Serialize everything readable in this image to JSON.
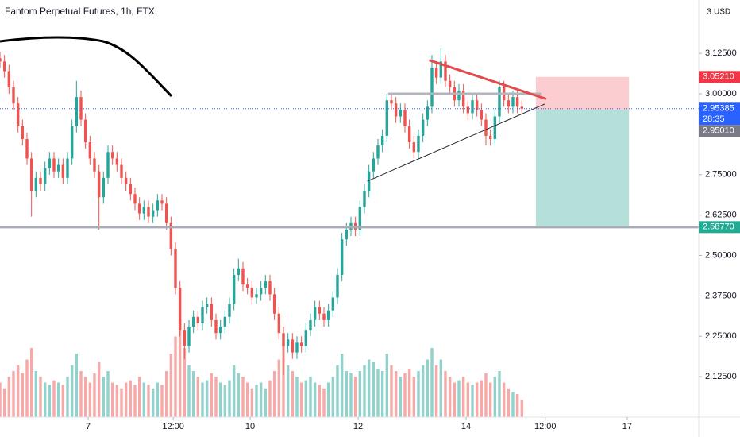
{
  "chart_data": {
    "type": "candlestick",
    "title": "Fantom Perpetual Futures, 1h, FTX",
    "scale_label": "3",
    "currency": "USD",
    "up_color": "#26a69a",
    "down_color": "#ef5350",
    "grid": false,
    "xlim": [
      0,
      155.3
    ],
    "xticks": [
      {
        "value": 19.6,
        "label": "7"
      },
      {
        "value": 38.5,
        "label": "12:00"
      },
      {
        "value": 55.6,
        "label": "10"
      },
      {
        "value": 79.6,
        "label": "12"
      },
      {
        "value": 103.6,
        "label": "14"
      },
      {
        "value": 121.2,
        "label": "12:00"
      },
      {
        "value": 139.4,
        "label": "17"
      }
    ],
    "ylim": [
      2.0,
      3.29
    ],
    "yticks": [
      {
        "value": 3.125,
        "label": "3.12500"
      },
      {
        "value": 3.0,
        "label": "3.00000"
      },
      {
        "value": 2.75,
        "label": "2.75000"
      },
      {
        "value": 2.625,
        "label": "2.62500"
      },
      {
        "value": 2.5,
        "label": "2.50000"
      },
      {
        "value": 2.375,
        "label": "2.37500"
      },
      {
        "value": 2.25,
        "label": "2.25000"
      },
      {
        "value": 2.125,
        "label": "2.12500"
      }
    ],
    "open": [
      3.11,
      3.1,
      3.07,
      3.02,
      2.97,
      2.9,
      2.86,
      2.8,
      2.7,
      2.74,
      2.72,
      2.77,
      2.8,
      2.76,
      2.78,
      2.74,
      2.8,
      2.9,
      2.99,
      2.92,
      2.85,
      2.8,
      2.76,
      2.68,
      2.74,
      2.82,
      2.8,
      2.78,
      2.74,
      2.72,
      2.69,
      2.66,
      2.63,
      2.65,
      2.62,
      2.64,
      2.67,
      2.66,
      2.6,
      2.52,
      2.4,
      2.27,
      2.22,
      2.28,
      2.31,
      2.29,
      2.34,
      2.35,
      2.3,
      2.26,
      2.28,
      2.31,
      2.35,
      2.44,
      2.46,
      2.41,
      2.4,
      2.37,
      2.38,
      2.4,
      2.42,
      2.38,
      2.32,
      2.26,
      2.22,
      2.24,
      2.2,
      2.23,
      2.22,
      2.27,
      2.3,
      2.34,
      2.32,
      2.3,
      2.33,
      2.37,
      2.44,
      2.55,
      2.58,
      2.6,
      2.58,
      2.65,
      2.7,
      2.76,
      2.8,
      2.84,
      2.87,
      2.98,
      2.97,
      2.93,
      2.95,
      2.9,
      2.85,
      2.82,
      2.87,
      2.92,
      2.96,
      3.08,
      3.05,
      3.1,
      3.04,
      3.02,
      2.98,
      3.01,
      2.96,
      2.94,
      2.98,
      2.95,
      2.92,
      2.87,
      2.86,
      2.93,
      3.02,
      2.98,
      2.96,
      2.99,
      2.96
    ],
    "high": [
      3.13,
      3.12,
      3.09,
      3.04,
      2.99,
      2.92,
      2.88,
      2.82,
      2.76,
      2.76,
      2.79,
      2.82,
      2.82,
      2.8,
      2.8,
      2.82,
      2.92,
      3.04,
      3.01,
      2.94,
      2.87,
      2.82,
      2.78,
      2.76,
      2.84,
      2.84,
      2.82,
      2.8,
      2.76,
      2.74,
      2.71,
      2.68,
      2.67,
      2.67,
      2.66,
      2.69,
      2.69,
      2.68,
      2.62,
      2.54,
      2.42,
      2.29,
      2.3,
      2.33,
      2.33,
      2.36,
      2.37,
      2.37,
      2.32,
      2.3,
      2.33,
      2.37,
      2.46,
      2.49,
      2.48,
      2.43,
      2.42,
      2.4,
      2.42,
      2.44,
      2.44,
      2.4,
      2.34,
      2.28,
      2.26,
      2.26,
      2.25,
      2.25,
      2.29,
      2.32,
      2.36,
      2.36,
      2.34,
      2.35,
      2.39,
      2.46,
      2.57,
      2.6,
      2.62,
      2.62,
      2.67,
      2.72,
      2.78,
      2.82,
      2.86,
      2.89,
      3.0,
      3.0,
      2.99,
      2.97,
      2.97,
      2.92,
      2.87,
      2.89,
      2.94,
      2.98,
      3.12,
      3.1,
      3.14,
      3.12,
      3.06,
      3.04,
      3.03,
      3.03,
      2.98,
      3.0,
      3.0,
      2.97,
      2.94,
      2.89,
      2.95,
      3.04,
      3.04,
      3.0,
      3.01,
      3.01,
      2.98
    ],
    "low": [
      3.08,
      3.05,
      3.0,
      2.95,
      2.88,
      2.84,
      2.78,
      2.62,
      2.68,
      2.7,
      2.7,
      2.75,
      2.74,
      2.74,
      2.72,
      2.72,
      2.78,
      2.88,
      2.9,
      2.83,
      2.78,
      2.74,
      2.58,
      2.66,
      2.72,
      2.78,
      2.76,
      2.72,
      2.7,
      2.67,
      2.64,
      2.61,
      2.61,
      2.6,
      2.6,
      2.62,
      2.64,
      2.58,
      2.5,
      2.38,
      2.25,
      2.18,
      2.2,
      2.26,
      2.27,
      2.27,
      2.32,
      2.28,
      2.24,
      2.24,
      2.26,
      2.29,
      2.33,
      2.42,
      2.39,
      2.38,
      2.35,
      2.35,
      2.36,
      2.38,
      2.36,
      2.3,
      2.24,
      2.13,
      2.2,
      2.18,
      2.18,
      2.2,
      2.2,
      2.25,
      2.28,
      2.3,
      2.28,
      2.28,
      2.31,
      2.35,
      2.42,
      2.53,
      2.56,
      2.56,
      2.56,
      2.63,
      2.68,
      2.74,
      2.78,
      2.82,
      2.85,
      2.95,
      2.91,
      2.91,
      2.88,
      2.83,
      2.8,
      2.8,
      2.85,
      2.9,
      2.94,
      3.03,
      3.03,
      3.02,
      3.0,
      2.96,
      2.96,
      2.94,
      2.92,
      2.92,
      2.93,
      2.9,
      2.84,
      2.84,
      2.84,
      2.91,
      2.96,
      2.94,
      2.94,
      2.94,
      2.94
    ],
    "close": [
      3.1,
      3.07,
      3.02,
      2.97,
      2.9,
      2.86,
      2.8,
      2.7,
      2.74,
      2.72,
      2.77,
      2.8,
      2.76,
      2.78,
      2.74,
      2.8,
      2.9,
      2.99,
      2.92,
      2.85,
      2.8,
      2.76,
      2.68,
      2.74,
      2.82,
      2.8,
      2.78,
      2.74,
      2.72,
      2.69,
      2.66,
      2.63,
      2.65,
      2.62,
      2.64,
      2.67,
      2.66,
      2.6,
      2.52,
      2.4,
      2.27,
      2.22,
      2.28,
      2.31,
      2.29,
      2.34,
      2.35,
      2.3,
      2.26,
      2.28,
      2.31,
      2.35,
      2.44,
      2.46,
      2.41,
      2.4,
      2.37,
      2.38,
      2.4,
      2.42,
      2.38,
      2.32,
      2.26,
      2.22,
      2.24,
      2.2,
      2.23,
      2.22,
      2.27,
      2.3,
      2.34,
      2.32,
      2.3,
      2.33,
      2.37,
      2.44,
      2.55,
      2.58,
      2.6,
      2.58,
      2.65,
      2.7,
      2.76,
      2.8,
      2.84,
      2.87,
      2.98,
      2.97,
      2.93,
      2.95,
      2.9,
      2.85,
      2.82,
      2.87,
      2.92,
      2.96,
      3.08,
      3.05,
      3.1,
      3.04,
      3.02,
      2.98,
      3.01,
      2.96,
      2.94,
      2.98,
      2.95,
      2.92,
      2.87,
      2.86,
      2.93,
      3.02,
      2.98,
      2.96,
      2.99,
      2.96,
      2.954
    ],
    "volume": [
      30,
      25,
      35,
      40,
      45,
      38,
      50,
      60,
      40,
      35,
      30,
      28,
      32,
      30,
      28,
      35,
      45,
      55,
      40,
      35,
      30,
      38,
      48,
      35,
      40,
      30,
      28,
      25,
      30,
      32,
      28,
      35,
      30,
      28,
      25,
      30,
      28,
      40,
      55,
      70,
      85,
      60,
      45,
      40,
      35,
      30,
      32,
      38,
      35,
      30,
      28,
      32,
      45,
      38,
      35,
      30,
      25,
      28,
      30,
      25,
      32,
      40,
      50,
      65,
      45,
      40,
      35,
      30,
      32,
      35,
      30,
      28,
      25,
      30,
      35,
      45,
      55,
      40,
      38,
      35,
      40,
      45,
      50,
      48,
      42,
      40,
      55,
      45,
      40,
      35,
      38,
      42,
      35,
      40,
      45,
      50,
      60,
      45,
      50,
      40,
      35,
      30,
      32,
      35,
      30,
      28,
      30,
      32,
      38,
      30,
      35,
      40,
      30,
      25,
      22,
      20,
      15
    ],
    "position": {
      "x_start": 119.1,
      "x_end": 139.8,
      "stop": 3.0521,
      "entry": 2.9501,
      "target": 2.5877
    },
    "levels": [
      {
        "value": 2.5877,
        "color": "#a9acb4"
      }
    ],
    "lines": [
      {
        "x": [
          86.5,
          120
        ],
        "y": [
          3.0,
          3.0
        ],
        "color": "#b2b5be",
        "width": 3
      },
      {
        "x": [
          95.6,
          121.2
        ],
        "y": [
          3.103,
          2.985
        ],
        "color": "#e04b4b",
        "width": 3
      },
      {
        "x": [
          81.7,
          121.0
        ],
        "y": [
          2.73,
          2.968
        ],
        "color": "#1e222d",
        "width": 1
      }
    ],
    "price_labels": [
      {
        "value": 3.0521,
        "label": "3.05210",
        "color": "#f23645"
      },
      {
        "value": 2.95385,
        "label": "2.95385",
        "sublabel": "28:35",
        "color": "#2962ff"
      },
      {
        "value": 2.9501,
        "label": "2.95010",
        "color": "#787b86"
      },
      {
        "value": 2.5877,
        "label": "2.58770",
        "color": "#22ab94"
      }
    ]
  }
}
